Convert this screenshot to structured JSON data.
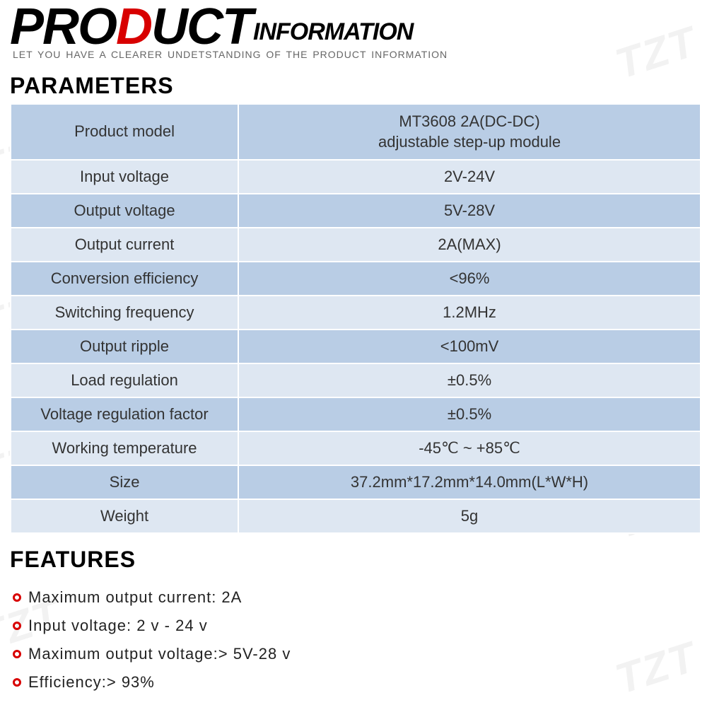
{
  "header": {
    "product_word": {
      "pre": "PRO",
      "accent": "D",
      "post": "UCT"
    },
    "info_word": "INFORMATION",
    "subtitle": "LET YOU HAVE A CLEARER UNDETSTANDING OF THE PRODUCT INFORMATION",
    "accent_color": "#d80000"
  },
  "watermark_text": "TZT",
  "sections": {
    "parameters_title": "PARAMETERS",
    "features_title": "FEATURES"
  },
  "parameters_table": {
    "row_colors": {
      "even": "#b9cde5",
      "odd": "#dee7f2"
    },
    "text_color": "#333333",
    "font_size": 22,
    "label_width_pct": 33,
    "value_width_pct": 67,
    "rows": [
      {
        "label": "Product model",
        "value": "MT3608 2A(DC-DC)\nadjustable step-up module"
      },
      {
        "label": "Input voltage",
        "value": "2V-24V"
      },
      {
        "label": "Output voltage",
        "value": "5V-28V"
      },
      {
        "label": "Output current",
        "value": "2A(MAX)"
      },
      {
        "label": "Conversion efficiency",
        "value": "<96%"
      },
      {
        "label": "Switching frequency",
        "value": "1.2MHz"
      },
      {
        "label": "Output ripple",
        "value": "<100mV"
      },
      {
        "label": "Load regulation",
        "value": "±0.5%"
      },
      {
        "label": "Voltage regulation factor",
        "value": "±0.5%"
      },
      {
        "label": "Working temperature",
        "value": "-45℃ ~ +85℃"
      },
      {
        "label": "Size",
        "value": "37.2mm*17.2mm*14.0mm(L*W*H)"
      },
      {
        "label": "Weight",
        "value": "5g"
      }
    ]
  },
  "features": {
    "bullet_color": "#d80000",
    "font_size": 22,
    "items": [
      "Maximum output current: 2A",
      "Input voltage: 2 v - 24 v",
      "Maximum output voltage:> 5V-28 v",
      "Efficiency:> 93%"
    ]
  }
}
